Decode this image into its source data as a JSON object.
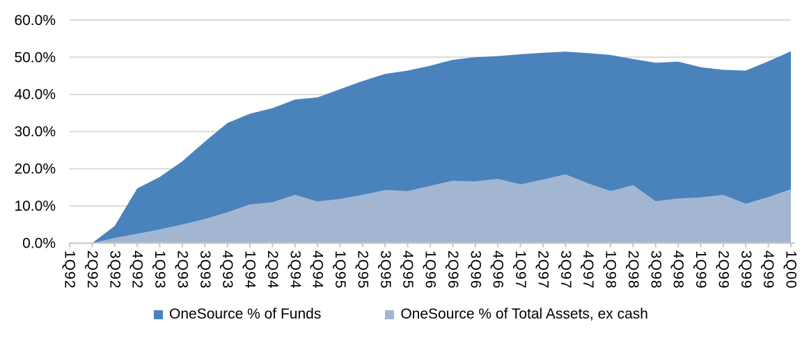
{
  "chart_data": {
    "type": "area",
    "stacked": false,
    "title": "",
    "xlabel": "",
    "ylabel": "",
    "categories": [
      "1Q92",
      "2Q92",
      "3Q92",
      "4Q92",
      "1Q93",
      "2Q93",
      "3Q93",
      "4Q93",
      "1Q94",
      "2Q94",
      "3Q94",
      "4Q94",
      "1Q95",
      "2Q95",
      "3Q95",
      "4Q95",
      "1Q96",
      "2Q96",
      "3Q96",
      "4Q96",
      "1Q97",
      "2Q97",
      "3Q97",
      "4Q97",
      "1Q98",
      "2Q98",
      "3Q98",
      "4Q98",
      "1Q99",
      "2Q99",
      "3Q99",
      "4Q99",
      "1Q00"
    ],
    "series": [
      {
        "name": "OneSource % of Funds",
        "color": "#4A82BC",
        "values": [
          0,
          0,
          4.6,
          14.7,
          17.8,
          22.0,
          27.3,
          32.3,
          34.8,
          36.3,
          38.6,
          39.2,
          41.4,
          43.6,
          45.5,
          46.4,
          47.7,
          49.3,
          50.0,
          50.3,
          50.8,
          51.2,
          51.5,
          51.1,
          50.6,
          49.5,
          48.5,
          48.8,
          47.3,
          46.6,
          46.4,
          48.9,
          51.6
        ]
      },
      {
        "name": "OneSource % of Total Assets, ex cash",
        "color": "#A3B6D1",
        "values": [
          0,
          0,
          1.4,
          2.5,
          3.7,
          5.0,
          6.5,
          8.3,
          10.4,
          11.0,
          13.0,
          11.2,
          11.9,
          13.0,
          14.3,
          14.0,
          15.4,
          16.8,
          16.6,
          17.3,
          15.8,
          17.1,
          18.5,
          16.1,
          14.0,
          15.6,
          11.3,
          12.0,
          12.3,
          13.0,
          10.6,
          12.4,
          14.5
        ]
      }
    ],
    "ylim": [
      0,
      60
    ],
    "y_ticks": [
      0,
      10,
      20,
      30,
      40,
      50,
      60
    ],
    "y_tick_labels": [
      "0.0%",
      "10.0%",
      "20.0%",
      "30.0%",
      "40.0%",
      "50.0%",
      "60.0%"
    ],
    "x_tick_label_rotation": 90,
    "grid": "horizontal",
    "legend_position": "bottom"
  },
  "style": {
    "background": "#FFFFFF",
    "gridline_color": "#D9D9D9",
    "axis_color": "#C6C6C6",
    "text_color": "#000000"
  }
}
